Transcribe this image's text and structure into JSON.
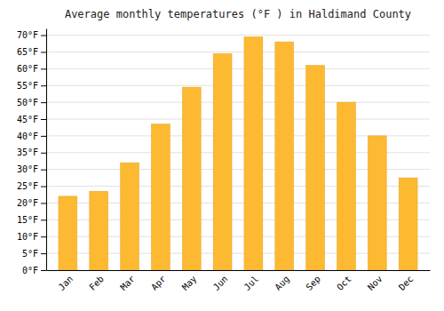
{
  "chart_data": {
    "type": "bar",
    "title": "Average monthly temperatures (°F ) in Haldimand County",
    "categories": [
      "Jan",
      "Feb",
      "Mar",
      "Apr",
      "May",
      "Jun",
      "Jul",
      "Aug",
      "Sep",
      "Oct",
      "Nov",
      "Dec"
    ],
    "values": [
      22,
      23.5,
      32,
      43.5,
      54.5,
      64.5,
      69.5,
      68,
      61,
      50,
      40,
      27.5
    ],
    "color": "#FDB931",
    "ylim": [
      0,
      72
    ],
    "yticks": [
      {
        "value": 0,
        "label": "0°F"
      },
      {
        "value": 5,
        "label": "5°F"
      },
      {
        "value": 10,
        "label": "10°F"
      },
      {
        "value": 15,
        "label": "15°F"
      },
      {
        "value": 20,
        "label": "20°F"
      },
      {
        "value": 25,
        "label": "25°F"
      },
      {
        "value": 30,
        "label": "30°F"
      },
      {
        "value": 35,
        "label": "35°F"
      },
      {
        "value": 40,
        "label": "40°F"
      },
      {
        "value": 45,
        "label": "45°F"
      },
      {
        "value": 50,
        "label": "50°F"
      },
      {
        "value": 55,
        "label": "55°F"
      },
      {
        "value": 60,
        "label": "60°F"
      },
      {
        "value": 65,
        "label": "65°F"
      },
      {
        "value": 70,
        "label": "70°F"
      }
    ],
    "grid": true
  }
}
